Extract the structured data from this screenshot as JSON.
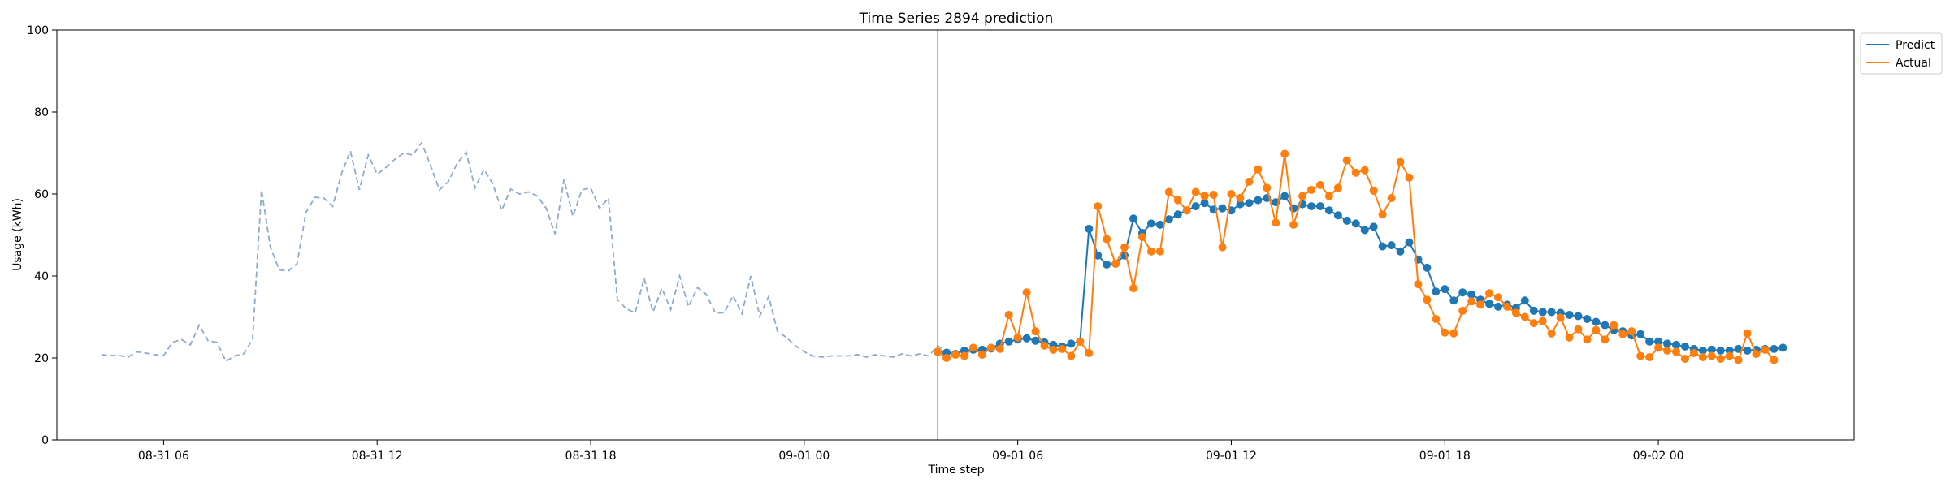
{
  "chart_data": {
    "type": "line",
    "title": "Time Series 2894 prediction",
    "xlabel": "Time step",
    "ylabel": "Usage (kWh)",
    "ylim": [
      0,
      100
    ],
    "yticks": [
      0,
      20,
      40,
      60,
      80,
      100
    ],
    "x_axis": {
      "start": "08-31 03:00",
      "end": "09-02 05:30",
      "tick_values": [
        "08-31 06:00",
        "08-31 12:00",
        "08-31 18:00",
        "09-01 00:00",
        "09-01 06:00",
        "09-01 12:00",
        "09-01 18:00",
        "09-02 00:00"
      ],
      "tick_labels": [
        "08-31 06",
        "08-31 12",
        "08-31 18",
        "09-01 00",
        "09-01 06",
        "09-01 12",
        "09-01 18",
        "09-02 00"
      ]
    },
    "grid": false,
    "legend_placement": "top-right, outside plot",
    "history": {
      "start": "08-31 04:15",
      "interval_minutes": 15,
      "style": "dashed",
      "color": "#8eaacc",
      "values": [
        20.8,
        20.6,
        20.6,
        20.2,
        21.5,
        21.2,
        20.8,
        20.6,
        23.8,
        24.5,
        23.2,
        28.0,
        24.2,
        23.8,
        19.2,
        20.5,
        21.0,
        24.5,
        61.0,
        47.0,
        41.5,
        41.2,
        43.0,
        55.5,
        59.2,
        59.0,
        57.0,
        65.0,
        70.5,
        61.0,
        69.5,
        64.8,
        66.5,
        68.5,
        70.0,
        69.5,
        72.5,
        67.0,
        61.0,
        63.0,
        67.5,
        70.2,
        61.5,
        66.0,
        62.5,
        56.0,
        61.2,
        60.0,
        60.5,
        59.5,
        56.5,
        50.2,
        63.5,
        54.5,
        61.0,
        61.5,
        56.5,
        59.0,
        34.2,
        32.0,
        31.0,
        39.5,
        31.2,
        37.0,
        31.8,
        40.0,
        32.5,
        37.2,
        35.5,
        31.0,
        31.0,
        35.2,
        30.8,
        40.0,
        30.2,
        35.0,
        26.5,
        25.0,
        23.0,
        21.5,
        20.5,
        20.2,
        20.5,
        20.5,
        20.5,
        20.8,
        20.2,
        20.8,
        20.5,
        20.2,
        21.0,
        20.5,
        21.0,
        20.5,
        23.0,
        21.5,
        21.5
      ]
    },
    "forecast_start": "09-01 03:45",
    "forecast_line_color": "#4c72b0",
    "series": [
      {
        "name": "Predict",
        "color": "#1f77b4",
        "start": "09-01 03:45",
        "interval_minutes": 15,
        "values": [
          21.5,
          21.3,
          21.0,
          21.8,
          22.0,
          22.0,
          22.3,
          23.5,
          24.0,
          24.5,
          24.8,
          24.2,
          23.8,
          23.2,
          22.8,
          23.5,
          24.0,
          51.5,
          45.0,
          42.8,
          43.0,
          45.0,
          54.0,
          50.5,
          52.8,
          52.5,
          53.8,
          55.0,
          56.0,
          57.0,
          57.8,
          56.2,
          56.5,
          56.0,
          57.5,
          57.8,
          58.5,
          59.0,
          58.0,
          59.5,
          56.5,
          57.5,
          57.0,
          57.0,
          56.0,
          54.8,
          53.5,
          52.8,
          51.2,
          52.0,
          47.2,
          47.5,
          46.0,
          48.2,
          44.0,
          42.0,
          36.2,
          36.8,
          34.0,
          36.0,
          35.5,
          34.2,
          33.2,
          32.5,
          33.0,
          32.2,
          34.0,
          31.5,
          31.2,
          31.2,
          31.0,
          30.5,
          30.2,
          29.5,
          28.8,
          28.0,
          26.8,
          26.5,
          25.5,
          25.8,
          24.0,
          24.0,
          23.5,
          23.2,
          22.8,
          22.2,
          21.8,
          22.0,
          21.8,
          21.8,
          22.2,
          21.8,
          22.0,
          22.2,
          22.2,
          22.5
        ]
      },
      {
        "name": "Actual",
        "color": "#ff7f0e",
        "start": "09-01 03:45",
        "interval_minutes": 15,
        "values": [
          21.5,
          20.0,
          20.8,
          20.5,
          22.5,
          20.8,
          22.5,
          22.2,
          30.5,
          25.0,
          36.0,
          26.5,
          23.0,
          22.0,
          22.2,
          20.5,
          24.0,
          21.2,
          57.0,
          49.0,
          43.0,
          47.0,
          37.0,
          49.5,
          46.0,
          46.0,
          60.5,
          58.5,
          56.0,
          60.5,
          59.5,
          59.8,
          47.0,
          60.0,
          59.0,
          63.0,
          66.0,
          61.5,
          53.0,
          69.8,
          52.5,
          59.5,
          61.0,
          62.2,
          59.5,
          61.5,
          68.2,
          65.2,
          65.8,
          60.8,
          55.0,
          59.0,
          67.8,
          64.0,
          38.0,
          34.2,
          29.5,
          26.2,
          26.0,
          31.5,
          33.8,
          33.0,
          35.8,
          34.8,
          32.5,
          31.0,
          30.0,
          28.5,
          29.0,
          26.0,
          29.8,
          25.0,
          27.0,
          24.5,
          26.8,
          24.5,
          28.0,
          25.8,
          26.5,
          20.5,
          20.2,
          22.5,
          21.8,
          21.5,
          19.8,
          21.2,
          20.2,
          20.5,
          19.8,
          20.5,
          19.5,
          26.0,
          21.0,
          22.0,
          19.5
        ]
      }
    ]
  }
}
